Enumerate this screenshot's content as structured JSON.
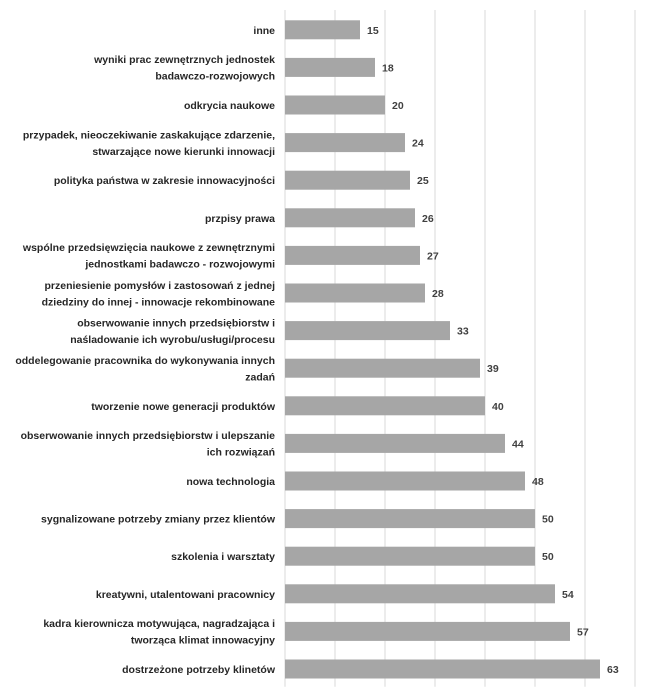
{
  "chart_data": {
    "type": "bar",
    "orientation": "horizontal",
    "title": "",
    "xlabel": "",
    "ylabel": "",
    "xlim": [
      0,
      70
    ],
    "grid": "vertical",
    "legend": "none",
    "bar_color": "#a6a6a6",
    "categories": [
      [
        "inne"
      ],
      [
        "wyniki prac zewnętrznych jednostek",
        "badawczo-rozwojowych"
      ],
      [
        "odkrycia naukowe"
      ],
      [
        "przypadek, nieoczekiwanie zaskakujące zdarzenie,",
        "stwarzające nowe kierunki innowacji"
      ],
      [
        "polityka państwa w zakresie innowacyjności"
      ],
      [
        "przpisy prawa"
      ],
      [
        "wspólne przedsięwzięcia naukowe z zewnętrznymi",
        "jednostkami badawczo - rozwojowymi"
      ],
      [
        "przeniesienie pomysłów i zastosowań z jednej",
        "dziedziny do innej - innowacje rekombinowane"
      ],
      [
        "obserwowanie innych przedsiębiorstw i",
        "naśladowanie ich wyrobu/usługi/procesu"
      ],
      [
        "oddelegowanie pracownika do wykonywania innych",
        "zadań"
      ],
      [
        "tworzenie nowe generacji produktów"
      ],
      [
        "obserwowanie innych przedsiębiorstw i ulepszanie",
        "ich rozwiązań"
      ],
      [
        "nowa technologia"
      ],
      [
        "sygnalizowane potrzeby zmiany przez klientów"
      ],
      [
        "szkolenia i warsztaty"
      ],
      [
        "kreatywni, utalentowani pracownicy"
      ],
      [
        "kadra kierownicza motywująca, nagradzająca i",
        "tworząca klimat innowacyjny"
      ],
      [
        "dostrzeżone potrzeby klinetów"
      ]
    ],
    "values": [
      15,
      18,
      20,
      24,
      25,
      26,
      27,
      28,
      33,
      39,
      40,
      44,
      48,
      50,
      50,
      54,
      57,
      63
    ]
  }
}
